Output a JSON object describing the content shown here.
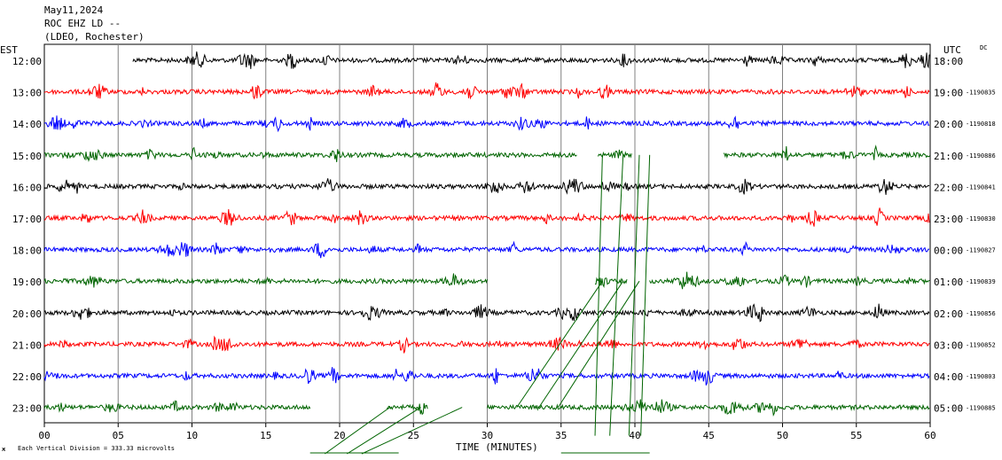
{
  "header": {
    "date": "May11,2024",
    "station": "ROC EHZ LD --",
    "network": "(LDEO, Rochester)"
  },
  "left_axis_title": "EST",
  "right_axis_title": "UTC",
  "dc_label": "DC",
  "xlabel": "TIME (MINUTES)",
  "scale_note": "Each Vertical Division =  333.33 microvolts",
  "corner_mark": "ж",
  "chart_data": {
    "type": "line",
    "title": "",
    "xlim": [
      0,
      60
    ],
    "x_ticks": [
      "00",
      "05",
      "10",
      "15",
      "20",
      "25",
      "30",
      "35",
      "40",
      "45",
      "50",
      "55",
      "60"
    ],
    "x_tick_values": [
      0,
      5,
      10,
      15,
      20,
      25,
      30,
      35,
      40,
      45,
      50,
      55,
      60
    ],
    "colors": [
      "#000000",
      "#ff0000",
      "#0000ff",
      "#006400"
    ],
    "rows": [
      {
        "est": "12:00",
        "utc": "18:00",
        "dc": "",
        "color": "#000000",
        "segments": [
          [
            6.0,
            60
          ]
        ]
      },
      {
        "est": "13:00",
        "utc": "19:00",
        "dc": "-1190835",
        "color": "#ff0000",
        "segments": [
          [
            0,
            60
          ]
        ]
      },
      {
        "est": "14:00",
        "utc": "20:00",
        "dc": "-1190818",
        "color": "#0000ff",
        "segments": [
          [
            0,
            60
          ]
        ]
      },
      {
        "est": "15:00",
        "utc": "21:00",
        "dc": "-1190886",
        "color": "#006400",
        "segments": [
          [
            0,
            36.1
          ],
          [
            37.5,
            39.8
          ],
          [
            46.0,
            60
          ]
        ]
      },
      {
        "est": "16:00",
        "utc": "22:00",
        "dc": "-1190841",
        "color": "#000000",
        "segments": [
          [
            0,
            60
          ]
        ]
      },
      {
        "est": "17:00",
        "utc": "23:00",
        "dc": "-1190830",
        "color": "#ff0000",
        "segments": [
          [
            0,
            60
          ]
        ]
      },
      {
        "est": "18:00",
        "utc": "00:00",
        "dc": "-1190827",
        "color": "#0000ff",
        "segments": [
          [
            0,
            60
          ]
        ]
      },
      {
        "est": "19:00",
        "utc": "01:00",
        "dc": "-1190839",
        "color": "#006400",
        "segments": [
          [
            0,
            30.0
          ],
          [
            37.3,
            39.5
          ],
          [
            41.0,
            60
          ]
        ]
      },
      {
        "est": "20:00",
        "utc": "02:00",
        "dc": "-1190856",
        "color": "#000000",
        "segments": [
          [
            0,
            60
          ]
        ]
      },
      {
        "est": "21:00",
        "utc": "03:00",
        "dc": "-1190852",
        "color": "#ff0000",
        "segments": [
          [
            0,
            60
          ]
        ]
      },
      {
        "est": "22:00",
        "utc": "04:00",
        "dc": "-1190803",
        "color": "#0000ff",
        "segments": [
          [
            0,
            60
          ]
        ]
      },
      {
        "est": "23:00",
        "utc": "05:00",
        "dc": "-1190885",
        "color": "#006400",
        "segments": [
          [
            0,
            18.0
          ],
          [
            23.2,
            26.0
          ],
          [
            30.0,
            60
          ]
        ]
      }
    ],
    "event_lines": [
      {
        "from": [
          23.4,
          11
        ],
        "to": [
          19.0,
          12.5
        ]
      },
      {
        "from": [
          25.5,
          11
        ],
        "to": [
          20.5,
          12.5
        ]
      },
      {
        "from": [
          28.3,
          11
        ],
        "to": [
          21.5,
          12.5
        ]
      },
      {
        "from": [
          37.8,
          7
        ],
        "to": [
          32.0,
          11
        ]
      },
      {
        "from": [
          39.2,
          7
        ],
        "to": [
          33.5,
          11
        ]
      },
      {
        "from": [
          40.3,
          7
        ],
        "to": [
          34.8,
          11
        ]
      },
      {
        "from": [
          37.8,
          3
        ],
        "to": [
          37.3,
          11.9
        ]
      },
      {
        "from": [
          39.2,
          3
        ],
        "to": [
          38.3,
          11.9
        ]
      },
      {
        "from": [
          40.3,
          3
        ],
        "to": [
          39.6,
          11.9
        ]
      },
      {
        "from": [
          41.0,
          3
        ],
        "to": [
          40.4,
          11.9
        ]
      }
    ]
  }
}
